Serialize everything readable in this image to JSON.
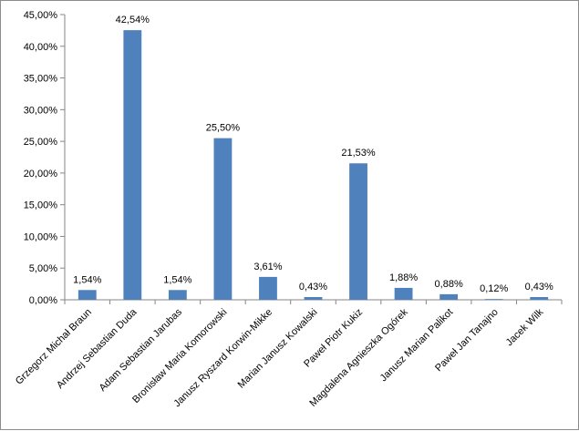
{
  "chart_data": {
    "type": "bar",
    "title": "",
    "xlabel": "",
    "ylabel": "",
    "ylim": [
      0,
      45
    ],
    "y_tick_step": 5,
    "y_tick_labels": [
      "0,00%",
      "5,00%",
      "10,00%",
      "15,00%",
      "20,00%",
      "25,00%",
      "30,00%",
      "35,00%",
      "40,00%",
      "45,00%"
    ],
    "grid": false,
    "legend": "none",
    "bar_color": "#4f81bd",
    "categories": [
      "Grzegorz Michał Braun",
      "Andrzej Sebastian Duda",
      "Adam Sebastian Jarubas",
      "Bronisław Maria Komorowski",
      "Janusz Ryszard Korwin-Mikke",
      "Marian Janusz Kowalski",
      "Paweł Piotr Kukiz",
      "Magdalena Agnieszka Ogórek",
      "Janusz Marian Palikot",
      "Paweł Jan Tanajno",
      "Jacek Wilk"
    ],
    "values": [
      1.54,
      42.54,
      1.54,
      25.5,
      3.61,
      0.43,
      21.53,
      1.88,
      0.88,
      0.12,
      0.43
    ],
    "value_labels": [
      "1,54%",
      "42,54%",
      "1,54%",
      "25,50%",
      "3,61%",
      "0,43%",
      "21,53%",
      "1,88%",
      "0,88%",
      "0,12%",
      "0,43%"
    ]
  }
}
